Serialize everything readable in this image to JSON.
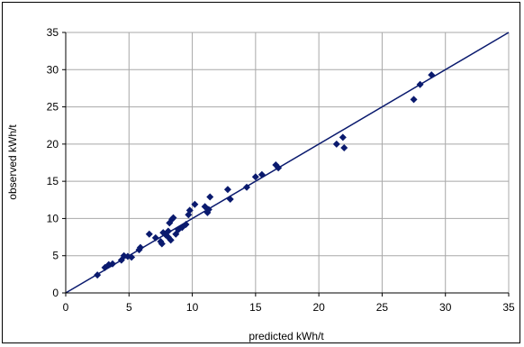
{
  "chart_data": {
    "type": "scatter",
    "title": "",
    "xlabel": "predicted kWh/t",
    "ylabel": "observed kWh/t",
    "xlim": [
      0,
      35
    ],
    "ylim": [
      0,
      35
    ],
    "xticks": [
      0,
      5,
      10,
      15,
      20,
      25,
      30,
      35
    ],
    "yticks": [
      0,
      5,
      10,
      15,
      20,
      25,
      30,
      35
    ],
    "grid": true,
    "legend": "none",
    "colors": {
      "marker": "#0a1a6e",
      "line": "#0a1a6e",
      "grid": "#a8a8a8",
      "axis": "#000000"
    },
    "series": [
      {
        "points": [
          [
            2.5,
            2.4
          ],
          [
            3.1,
            3.4
          ],
          [
            3.4,
            3.8
          ],
          [
            3.7,
            3.9
          ],
          [
            4.4,
            4.4
          ],
          [
            4.6,
            5.0
          ],
          [
            4.9,
            4.9
          ],
          [
            5.2,
            4.8
          ],
          [
            5.8,
            5.8
          ],
          [
            5.9,
            6.1
          ],
          [
            6.6,
            7.9
          ],
          [
            7.1,
            7.4
          ],
          [
            7.5,
            6.9
          ],
          [
            7.6,
            6.6
          ],
          [
            7.7,
            8.1
          ],
          [
            7.9,
            7.8
          ],
          [
            8.1,
            7.5
          ],
          [
            8.1,
            8.3
          ],
          [
            8.2,
            9.4
          ],
          [
            8.3,
            7.1
          ],
          [
            8.4,
            9.9
          ],
          [
            8.5,
            10.1
          ],
          [
            8.7,
            7.9
          ],
          [
            8.9,
            8.5
          ],
          [
            9.2,
            8.8
          ],
          [
            9.5,
            9.2
          ],
          [
            9.7,
            10.5
          ],
          [
            9.8,
            11.1
          ],
          [
            10.2,
            11.9
          ],
          [
            11.0,
            11.6
          ],
          [
            11.2,
            10.8
          ],
          [
            11.3,
            11.2
          ],
          [
            11.4,
            12.9
          ],
          [
            12.8,
            13.9
          ],
          [
            13.0,
            12.6
          ],
          [
            14.3,
            14.2
          ],
          [
            15.0,
            15.6
          ],
          [
            15.5,
            15.9
          ],
          [
            16.6,
            17.2
          ],
          [
            16.8,
            16.8
          ],
          [
            21.4,
            20.0
          ],
          [
            21.9,
            20.9
          ],
          [
            22.0,
            19.5
          ],
          [
            27.5,
            26.0
          ],
          [
            28.0,
            28.0
          ],
          [
            28.9,
            29.3
          ]
        ]
      }
    ],
    "reference_line": {
      "from": [
        0,
        0
      ],
      "to": [
        35,
        35
      ]
    }
  }
}
